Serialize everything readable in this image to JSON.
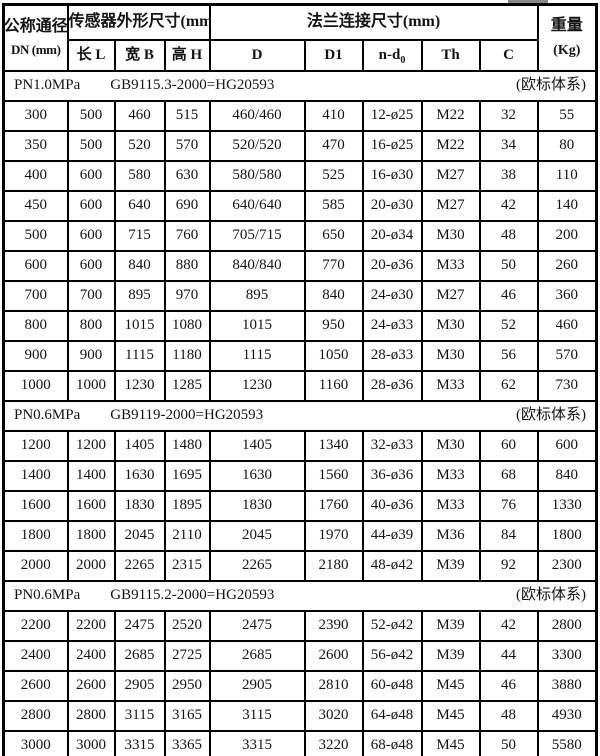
{
  "colors": {
    "border": "#000000",
    "text": "#141414",
    "background": "#ffffff"
  },
  "table": {
    "header": {
      "dn_title": "公称通径",
      "dn_sub": "DN (mm)",
      "sensor_group": "传感器外形尺寸(mm)",
      "flange_group": "法兰连接尺寸(mm)",
      "weight_title": "重量",
      "weight_sub": "(Kg)",
      "col_length": "长 L",
      "col_width": "宽 B",
      "col_height": "高 H",
      "col_d": "D",
      "col_d1": "D1",
      "nd_prefix": "n-d",
      "nd_sub": "0",
      "col_th": "Th",
      "col_c": "C"
    },
    "sections": [
      {
        "pressure": "PN1.0MPa",
        "standard": "GB9115.3-2000=HG20593",
        "note": "(欧标体系)",
        "rows": [
          [
            "300",
            "500",
            "460",
            "515",
            "460/460",
            "410",
            "12-ø25",
            "M22",
            "32",
            "55"
          ],
          [
            "350",
            "500",
            "520",
            "570",
            "520/520",
            "470",
            "16-ø25",
            "M22",
            "34",
            "80"
          ],
          [
            "400",
            "600",
            "580",
            "630",
            "580/580",
            "525",
            "16-ø30",
            "M27",
            "38",
            "110"
          ],
          [
            "450",
            "600",
            "640",
            "690",
            "640/640",
            "585",
            "20-ø30",
            "M27",
            "42",
            "140"
          ],
          [
            "500",
            "600",
            "715",
            "760",
            "705/715",
            "650",
            "20-ø34",
            "M30",
            "48",
            "200"
          ],
          [
            "600",
            "600",
            "840",
            "880",
            "840/840",
            "770",
            "20-ø36",
            "M33",
            "50",
            "260"
          ],
          [
            "700",
            "700",
            "895",
            "970",
            "895",
            "840",
            "24-ø30",
            "M27",
            "46",
            "360"
          ],
          [
            "800",
            "800",
            "1015",
            "1080",
            "1015",
            "950",
            "24-ø33",
            "M30",
            "52",
            "460"
          ],
          [
            "900",
            "900",
            "1115",
            "1180",
            "1115",
            "1050",
            "28-ø33",
            "M30",
            "56",
            "570"
          ],
          [
            "1000",
            "1000",
            "1230",
            "1285",
            "1230",
            "1160",
            "28-ø36",
            "M33",
            "62",
            "730"
          ]
        ]
      },
      {
        "pressure": "PN0.6MPa",
        "standard": "GB9119-2000=HG20593",
        "note": "(欧标体系)",
        "rows": [
          [
            "1200",
            "1200",
            "1405",
            "1480",
            "1405",
            "1340",
            "32-ø33",
            "M30",
            "60",
            "600"
          ],
          [
            "1400",
            "1400",
            "1630",
            "1695",
            "1630",
            "1560",
            "36-ø36",
            "M33",
            "68",
            "840"
          ],
          [
            "1600",
            "1600",
            "1830",
            "1895",
            "1830",
            "1760",
            "40-ø36",
            "M33",
            "76",
            "1330"
          ],
          [
            "1800",
            "1800",
            "2045",
            "2110",
            "2045",
            "1970",
            "44-ø39",
            "M36",
            "84",
            "1800"
          ],
          [
            "2000",
            "2000",
            "2265",
            "2315",
            "2265",
            "2180",
            "48-ø42",
            "M39",
            "92",
            "2300"
          ]
        ]
      },
      {
        "pressure": "PN0.6MPa",
        "standard": "GB9115.2-2000=HG20593",
        "note": "(欧标体系)",
        "rows": [
          [
            "2200",
            "2200",
            "2475",
            "2520",
            "2475",
            "2390",
            "52-ø42",
            "M39",
            "42",
            "2800"
          ],
          [
            "2400",
            "2400",
            "2685",
            "2725",
            "2685",
            "2600",
            "56-ø42",
            "M39",
            "44",
            "3300"
          ],
          [
            "2600",
            "2600",
            "2905",
            "2950",
            "2905",
            "2810",
            "60-ø48",
            "M45",
            "46",
            "3880"
          ],
          [
            "2800",
            "2800",
            "3115",
            "3165",
            "3115",
            "3020",
            "64-ø48",
            "M45",
            "48",
            "4930"
          ],
          [
            "3000",
            "3000",
            "3315",
            "3365",
            "3315",
            "3220",
            "68-ø48",
            "M45",
            "50",
            "5580"
          ]
        ]
      }
    ]
  }
}
